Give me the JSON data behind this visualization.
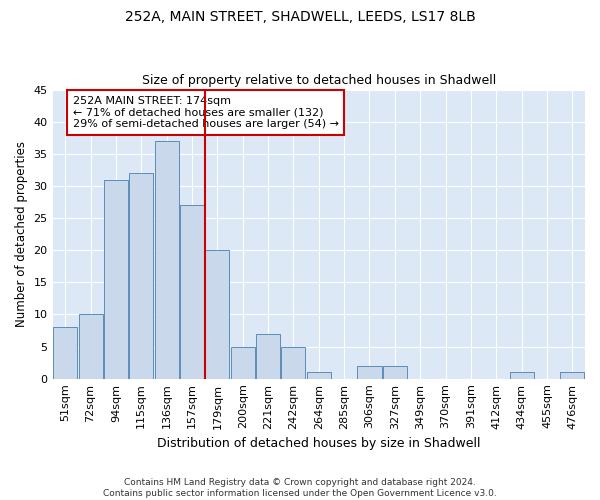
{
  "title": "252A, MAIN STREET, SHADWELL, LEEDS, LS17 8LB",
  "subtitle": "Size of property relative to detached houses in Shadwell",
  "xlabel": "Distribution of detached houses by size in Shadwell",
  "ylabel": "Number of detached properties",
  "categories": [
    "51sqm",
    "72sqm",
    "94sqm",
    "115sqm",
    "136sqm",
    "157sqm",
    "179sqm",
    "200sqm",
    "221sqm",
    "242sqm",
    "264sqm",
    "285sqm",
    "306sqm",
    "327sqm",
    "349sqm",
    "370sqm",
    "391sqm",
    "412sqm",
    "434sqm",
    "455sqm",
    "476sqm"
  ],
  "values": [
    8,
    10,
    31,
    32,
    37,
    27,
    20,
    5,
    7,
    5,
    1,
    0,
    2,
    2,
    0,
    0,
    0,
    0,
    1,
    0,
    1
  ],
  "bar_color": "#c9d9eb",
  "bar_edge_color": "#5b8db8",
  "highlight_color": "#cc0000",
  "annotation_title": "252A MAIN STREET: 174sqm",
  "annotation_line1": "← 71% of detached houses are smaller (132)",
  "annotation_line2": "29% of semi-detached houses are larger (54) →",
  "annotation_box_color": "#cc0000",
  "ylim": [
    0,
    45
  ],
  "yticks": [
    0,
    5,
    10,
    15,
    20,
    25,
    30,
    35,
    40,
    45
  ],
  "bg_color": "#dce8f5",
  "footer_line1": "Contains HM Land Registry data © Crown copyright and database right 2024.",
  "footer_line2": "Contains public sector information licensed under the Open Government Licence v3.0.",
  "title_fontsize": 10,
  "subtitle_fontsize": 9,
  "xlabel_fontsize": 9,
  "ylabel_fontsize": 8.5,
  "tick_fontsize": 8,
  "annotation_fontsize": 8
}
